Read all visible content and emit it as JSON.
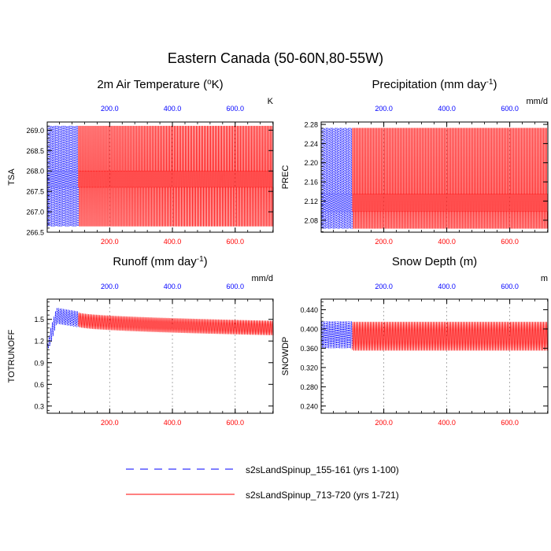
{
  "figure": {
    "title": "Eastern Canada (50-60N,80-55W)"
  },
  "colors": {
    "series1": "#0000ff",
    "series2": "#ff0000",
    "axis": "#000000",
    "grid": "#999999"
  },
  "legend": [
    {
      "label": "s2sLandSpinup_155-161 (yrs 1-100)",
      "color": "#0000ff",
      "dash": "dashed"
    },
    {
      "label": "s2sLandSpinup_713-720 (yrs 1-721)",
      "color": "#ff0000",
      "dash": "solid"
    }
  ],
  "chart_data": [
    {
      "id": "tsa",
      "type": "line",
      "title_main": "2m Air Temperature (",
      "title_sup": "o",
      "title_tail": "K)",
      "ylabel": "TSA",
      "units": "K",
      "xlim": [
        1,
        721
      ],
      "ylim": [
        266.5,
        269.2
      ],
      "yticks": [
        266.5,
        267.0,
        267.5,
        268.0,
        268.5,
        269.0
      ],
      "ytick_labels": [
        "266.5",
        "267.0",
        "267.5",
        "268.0",
        "268.5",
        "269.0"
      ],
      "top_xticks": [
        200,
        400,
        600
      ],
      "top_xtick_labels": [
        "200.0",
        "400.0",
        "600.0"
      ],
      "bottom_xticks": [
        200,
        400,
        600
      ],
      "bottom_xtick_labels": [
        "200.0",
        "400.0",
        "600.0"
      ],
      "series": [
        {
          "name": "s2sLandSpinup_155-161 (yrs 1-100)",
          "x_range": [
            1,
            100
          ],
          "period_years": 5,
          "min": 266.65,
          "max": 269.1,
          "mid_bands": [
            267.6,
            268.0
          ]
        },
        {
          "name": "s2sLandSpinup_713-720 (yrs 1-721)",
          "x_range": [
            100,
            721
          ],
          "period_years": 5,
          "min": 266.65,
          "max": 269.1,
          "mid_bands": [
            267.6,
            268.0
          ]
        }
      ]
    },
    {
      "id": "prec",
      "type": "line",
      "title_main": "Precipitation (mm day",
      "title_sup": "-1",
      "title_tail": ")",
      "ylabel": "PREC",
      "units": "mm/d",
      "xlim": [
        1,
        721
      ],
      "ylim": [
        2.055,
        2.285
      ],
      "yticks": [
        2.08,
        2.12,
        2.16,
        2.2,
        2.24,
        2.28
      ],
      "ytick_labels": [
        "2.08",
        "2.12",
        "2.16",
        "2.20",
        "2.24",
        "2.28"
      ],
      "top_xticks": [
        200,
        400,
        600
      ],
      "top_xtick_labels": [
        "200.0",
        "400.0",
        "600.0"
      ],
      "bottom_xticks": [
        200,
        400,
        600
      ],
      "bottom_xtick_labels": [
        "200.0",
        "400.0",
        "600.0"
      ],
      "series": [
        {
          "name": "s2sLandSpinup_155-161 (yrs 1-100)",
          "x_range": [
            1,
            100
          ],
          "period_years": 5,
          "min": 2.063,
          "max": 2.272,
          "mid_bands": [
            2.098,
            2.135
          ]
        },
        {
          "name": "s2sLandSpinup_713-720 (yrs 1-721)",
          "x_range": [
            100,
            721
          ],
          "period_years": 5,
          "min": 2.063,
          "max": 2.272,
          "mid_bands": [
            2.098,
            2.135
          ]
        }
      ]
    },
    {
      "id": "runoff",
      "type": "line",
      "title_main": "Runoff (mm day",
      "title_sup": "-1",
      "title_tail": ")",
      "ylabel": "TOTRUNOFF",
      "units": "mm/d",
      "xlim": [
        1,
        721
      ],
      "ylim": [
        0.2,
        1.78
      ],
      "yticks": [
        0.3,
        0.6,
        0.9,
        1.2,
        1.5
      ],
      "ytick_labels": [
        "0.3",
        "0.6",
        "0.9",
        "1.2",
        "1.5"
      ],
      "top_xticks": [
        200,
        400,
        600
      ],
      "top_xtick_labels": [
        "200.0",
        "400.0",
        "600.0"
      ],
      "bottom_xticks": [
        200,
        400,
        600
      ],
      "bottom_xtick_labels": [
        "200.0",
        "400.0",
        "600.0"
      ],
      "series": [
        {
          "name": "s2sLandSpinup_155-161 (yrs 1-100)",
          "x_range": [
            1,
            100
          ],
          "period_years": 5,
          "start": 1.1,
          "peak": 1.55,
          "end": 1.5,
          "amplitude": 0.11
        },
        {
          "name": "s2sLandSpinup_713-720 (yrs 1-721)",
          "x_range": [
            100,
            721
          ],
          "period_years": 5,
          "start": 1.5,
          "end": 1.38,
          "amplitude": 0.1
        }
      ]
    },
    {
      "id": "snowdp",
      "type": "line",
      "title_main": "Snow Depth (m)",
      "title_sup": "",
      "title_tail": "",
      "ylabel": "SNOWDP",
      "units": "m",
      "xlim": [
        1,
        721
      ],
      "ylim": [
        0.225,
        0.462
      ],
      "yticks": [
        0.24,
        0.28,
        0.32,
        0.36,
        0.4,
        0.44
      ],
      "ytick_labels": [
        "0.240",
        "0.280",
        "0.320",
        "0.360",
        "0.400",
        "0.440"
      ],
      "top_xticks": [
        200,
        400,
        600
      ],
      "top_xtick_labels": [
        "200.0",
        "400.0",
        "600.0"
      ],
      "bottom_xticks": [
        200,
        400,
        600
      ],
      "bottom_xtick_labels": [
        "200.0",
        "400.0",
        "600.0"
      ],
      "series": [
        {
          "name": "s2sLandSpinup_155-161 (yrs 1-100)",
          "x_range": [
            1,
            100
          ],
          "period_years": 5,
          "center": 0.388,
          "amplitude": 0.028
        },
        {
          "name": "s2sLandSpinup_713-720 (yrs 1-721)",
          "x_range": [
            100,
            721
          ],
          "period_years": 5,
          "center": 0.385,
          "amplitude": 0.03
        }
      ]
    }
  ]
}
